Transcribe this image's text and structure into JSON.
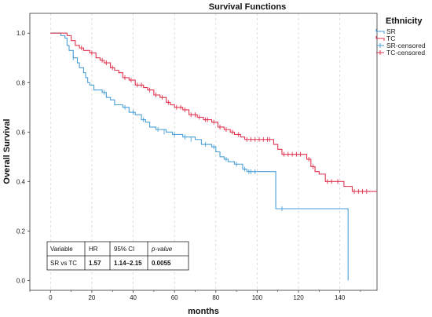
{
  "chart_data": {
    "type": "line",
    "title": "Survival Functions",
    "xlabel": "months",
    "ylabel": "Overall Survival",
    "xlim": [
      -10,
      158
    ],
    "ylim": [
      -0.04,
      1.08
    ],
    "x_ticks": [
      0,
      20,
      40,
      60,
      80,
      100,
      120,
      140
    ],
    "y_ticks": [
      0.0,
      0.2,
      0.4,
      0.6,
      0.8,
      1.0
    ],
    "y_tick_labels": [
      "0.0",
      "0.2",
      "0.4",
      "0.6",
      "0.8",
      "1.0"
    ],
    "grid": "vertical dashed",
    "legend": {
      "title": "Ethnicity",
      "position": "top-right",
      "entries": [
        "SR",
        "TC",
        "SR-censored",
        "TC-censored"
      ]
    },
    "colors": {
      "SR": "#4a9fd8",
      "TC": "#e0334f"
    },
    "series": [
      {
        "name": "SR",
        "color": "#4a9fd8",
        "steps": [
          [
            0,
            1.0
          ],
          [
            5,
            0.99
          ],
          [
            7,
            0.98
          ],
          [
            8,
            0.95
          ],
          [
            9,
            0.93
          ],
          [
            11,
            0.9
          ],
          [
            13,
            0.88
          ],
          [
            14,
            0.86
          ],
          [
            16,
            0.84
          ],
          [
            17,
            0.82
          ],
          [
            18,
            0.8
          ],
          [
            19,
            0.79
          ],
          [
            21,
            0.77
          ],
          [
            25,
            0.76
          ],
          [
            27,
            0.74
          ],
          [
            29,
            0.73
          ],
          [
            31,
            0.71
          ],
          [
            35,
            0.7
          ],
          [
            38,
            0.68
          ],
          [
            41,
            0.67
          ],
          [
            44,
            0.65
          ],
          [
            46,
            0.64
          ],
          [
            48,
            0.62
          ],
          [
            51,
            0.61
          ],
          [
            56,
            0.6
          ],
          [
            59,
            0.59
          ],
          [
            64,
            0.58
          ],
          [
            70,
            0.57
          ],
          [
            73,
            0.55
          ],
          [
            78,
            0.54
          ],
          [
            80,
            0.52
          ],
          [
            82,
            0.5
          ],
          [
            84,
            0.49
          ],
          [
            86,
            0.48
          ],
          [
            89,
            0.47
          ],
          [
            93,
            0.45
          ],
          [
            95,
            0.44
          ],
          [
            103,
            0.44
          ],
          [
            109,
            0.29
          ],
          [
            144,
            0.29
          ],
          [
            144,
            0.0
          ]
        ],
        "censored": [
          [
            11,
            0.9
          ],
          [
            26,
            0.76
          ],
          [
            36,
            0.7
          ],
          [
            40,
            0.68
          ],
          [
            45,
            0.65
          ],
          [
            52,
            0.61
          ],
          [
            55,
            0.6
          ],
          [
            60,
            0.59
          ],
          [
            65,
            0.58
          ],
          [
            68,
            0.57
          ],
          [
            75,
            0.55
          ],
          [
            79,
            0.54
          ],
          [
            85,
            0.49
          ],
          [
            90,
            0.47
          ],
          [
            94,
            0.45
          ],
          [
            96,
            0.44
          ],
          [
            97,
            0.44
          ],
          [
            99,
            0.44
          ],
          [
            112,
            0.29
          ]
        ]
      },
      {
        "name": "TC",
        "color": "#e0334f",
        "steps": [
          [
            0,
            1.0
          ],
          [
            8,
            0.99
          ],
          [
            10,
            0.97
          ],
          [
            12,
            0.95
          ],
          [
            14,
            0.94
          ],
          [
            16,
            0.93
          ],
          [
            19,
            0.92
          ],
          [
            22,
            0.9
          ],
          [
            24,
            0.89
          ],
          [
            26,
            0.88
          ],
          [
            29,
            0.86
          ],
          [
            31,
            0.85
          ],
          [
            33,
            0.84
          ],
          [
            35,
            0.82
          ],
          [
            38,
            0.81
          ],
          [
            41,
            0.79
          ],
          [
            45,
            0.78
          ],
          [
            47,
            0.77
          ],
          [
            50,
            0.75
          ],
          [
            53,
            0.74
          ],
          [
            56,
            0.72
          ],
          [
            58,
            0.71
          ],
          [
            60,
            0.7
          ],
          [
            64,
            0.69
          ],
          [
            67,
            0.67
          ],
          [
            71,
            0.66
          ],
          [
            74,
            0.65
          ],
          [
            78,
            0.64
          ],
          [
            81,
            0.62
          ],
          [
            84,
            0.61
          ],
          [
            87,
            0.6
          ],
          [
            89,
            0.59
          ],
          [
            92,
            0.58
          ],
          [
            94,
            0.57
          ],
          [
            107,
            0.57
          ],
          [
            108,
            0.55
          ],
          [
            110,
            0.53
          ],
          [
            112,
            0.51
          ],
          [
            123,
            0.51
          ],
          [
            124,
            0.49
          ],
          [
            126,
            0.46
          ],
          [
            128,
            0.44
          ],
          [
            130,
            0.43
          ],
          [
            133,
            0.4
          ],
          [
            138,
            0.4
          ],
          [
            142,
            0.38
          ],
          [
            146,
            0.36
          ],
          [
            158,
            0.36
          ]
        ],
        "censored": [
          [
            15,
            0.94
          ],
          [
            20,
            0.92
          ],
          [
            25,
            0.89
          ],
          [
            27,
            0.88
          ],
          [
            30,
            0.86
          ],
          [
            36,
            0.82
          ],
          [
            39,
            0.81
          ],
          [
            42,
            0.79
          ],
          [
            44,
            0.79
          ],
          [
            48,
            0.77
          ],
          [
            51,
            0.75
          ],
          [
            54,
            0.74
          ],
          [
            57,
            0.72
          ],
          [
            61,
            0.7
          ],
          [
            63,
            0.7
          ],
          [
            65,
            0.69
          ],
          [
            68,
            0.67
          ],
          [
            70,
            0.67
          ],
          [
            72,
            0.66
          ],
          [
            75,
            0.65
          ],
          [
            76,
            0.65
          ],
          [
            79,
            0.64
          ],
          [
            82,
            0.62
          ],
          [
            85,
            0.61
          ],
          [
            88,
            0.6
          ],
          [
            91,
            0.59
          ],
          [
            95,
            0.57
          ],
          [
            97,
            0.57
          ],
          [
            99,
            0.57
          ],
          [
            101,
            0.57
          ],
          [
            103,
            0.57
          ],
          [
            105,
            0.57
          ],
          [
            106,
            0.57
          ],
          [
            113,
            0.51
          ],
          [
            115,
            0.51
          ],
          [
            117,
            0.51
          ],
          [
            119,
            0.51
          ],
          [
            121,
            0.51
          ],
          [
            125,
            0.49
          ],
          [
            127,
            0.46
          ],
          [
            134,
            0.4
          ],
          [
            136,
            0.4
          ],
          [
            139,
            0.4
          ],
          [
            147,
            0.36
          ],
          [
            149,
            0.36
          ],
          [
            151,
            0.36
          ],
          [
            153,
            0.36
          ]
        ]
      }
    ],
    "table": {
      "headers": [
        "Variable",
        "HR",
        "95% CI",
        "p-value"
      ],
      "row": [
        "SR vs TC",
        "1.57",
        "1.14–2.15",
        "0.0055"
      ]
    }
  }
}
